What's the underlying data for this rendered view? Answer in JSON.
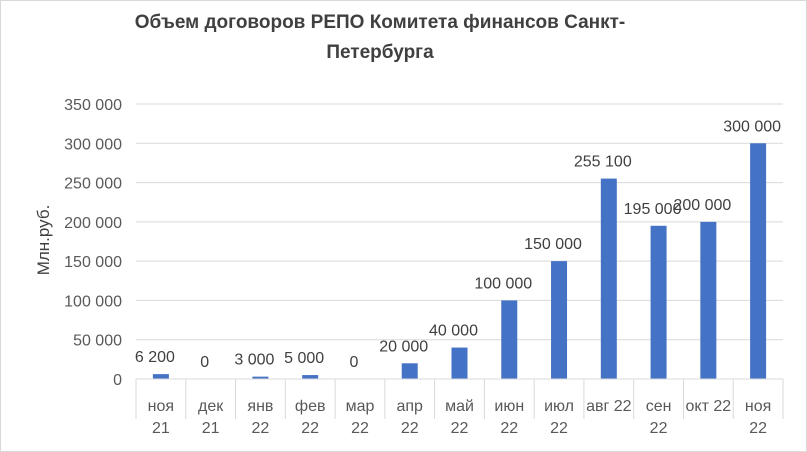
{
  "chart_data": {
    "type": "bar",
    "title": "Объем договоров  РЕПО Комитета финансов Санкт-Петербурга",
    "ylabel": "Млн.руб.",
    "xlabel": "",
    "categories": [
      [
        "ноя",
        "21"
      ],
      [
        "дек",
        "21"
      ],
      [
        "янв",
        "22"
      ],
      [
        "фев",
        "22"
      ],
      [
        "мар",
        "22"
      ],
      [
        "апр",
        "22"
      ],
      [
        "май",
        "22"
      ],
      [
        "июн",
        "22"
      ],
      [
        "июл",
        "22"
      ],
      [
        "авг 22",
        ""
      ],
      [
        "сен",
        "22"
      ],
      [
        "окт 22",
        ""
      ],
      [
        "ноя",
        "22"
      ]
    ],
    "values": [
      6200,
      0,
      3000,
      5000,
      0,
      20000,
      40000,
      100000,
      150000,
      255100,
      195000,
      200000,
      300000
    ],
    "data_labels": [
      "6 200",
      "0",
      "3 000",
      "5 000",
      "0",
      "20 000",
      "40 000",
      "100 000",
      "150 000",
      "255 100",
      "195 000",
      "200 000",
      "300 000"
    ],
    "yticks": [
      0,
      50000,
      100000,
      150000,
      200000,
      250000,
      300000,
      350000
    ],
    "ytick_labels": [
      "0",
      "50 000",
      "100 000",
      "150 000",
      "200 000",
      "250 000",
      "300 000",
      "350 000"
    ],
    "ylim": [
      0,
      350000
    ],
    "grid": true,
    "legend": "none",
    "bar_color": "#4472c4"
  }
}
